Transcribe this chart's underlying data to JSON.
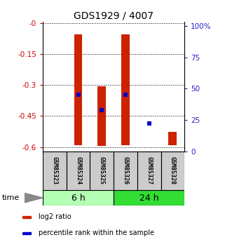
{
  "title": "GDS1929 / 4007",
  "samples": [
    "GSM85323",
    "GSM85324",
    "GSM85325",
    "GSM85326",
    "GSM85327",
    "GSM85328"
  ],
  "groups": [
    {
      "label": "6 h",
      "indices": [
        0,
        1,
        2
      ],
      "color": "#b3ffb3"
    },
    {
      "label": "24 h",
      "indices": [
        3,
        4,
        5
      ],
      "color": "#33dd33"
    }
  ],
  "log2_ratio_top": [
    0.0,
    -0.055,
    -0.305,
    -0.055,
    0.0,
    -0.525
  ],
  "log2_ratio_bot": [
    0.0,
    -0.59,
    -0.595,
    -0.59,
    0.0,
    -0.59
  ],
  "percentile_rank_pct": [
    null,
    45,
    33,
    45,
    22,
    null
  ],
  "ylim_left": [
    -0.62,
    0.005
  ],
  "ylim_right": [
    0,
    103.3
  ],
  "yticks_left": [
    0,
    -0.15,
    -0.3,
    -0.45,
    -0.6
  ],
  "yticks_right": [
    0,
    25,
    50,
    75,
    100
  ],
  "bar_color": "#cc2200",
  "bar_width": 0.35,
  "blue_color": "#0000cc",
  "blue_size": 25,
  "grid_color": "#000000",
  "bg_color": "#ffffff",
  "plot_bg": "#ffffff",
  "left_label_color": "#cc0000",
  "right_label_color": "#2222cc",
  "sample_label_bg": "#cccccc",
  "legend_items": [
    {
      "color": "#cc2200",
      "label": "log2 ratio"
    },
    {
      "color": "#0000cc",
      "label": "percentile rank within the sample"
    }
  ]
}
